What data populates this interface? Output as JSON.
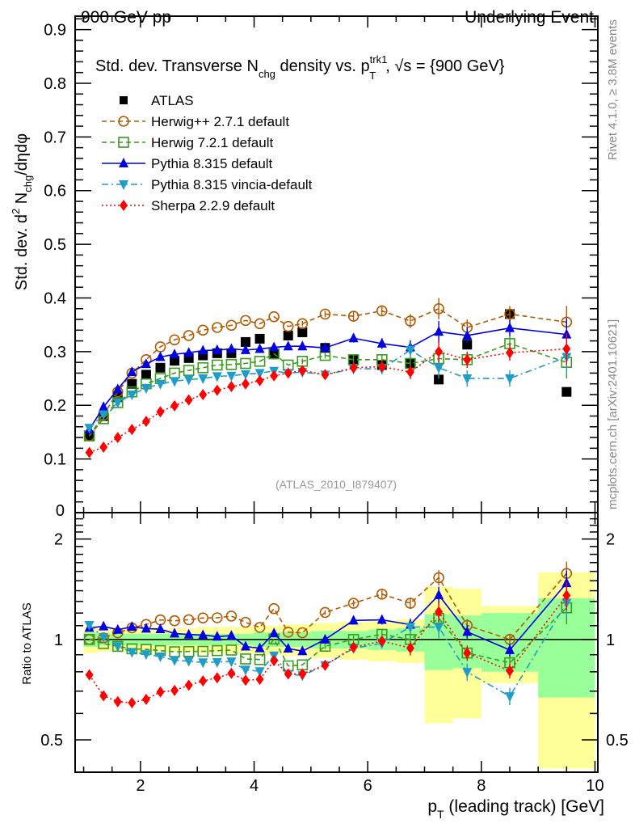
{
  "chart_data": {
    "type": "scatter",
    "header_left": "900 GeV pp",
    "header_right": "Underlying Event",
    "title": {
      "pre": "Std. dev. Transverse N",
      "sub1": "chg",
      "mid": " density vs. p",
      "sup2": "trk1",
      "sub2": "T",
      "post": ", √s = {900 GeV}"
    },
    "ylabel": {
      "pre": "Std. dev. d",
      "sup": "2",
      "mid": " N",
      "sub": "chg",
      "post": "/dηdφ"
    },
    "ratio_ylabel": "Ratio to ATLAS",
    "xlabel": {
      "pre": "p",
      "sub": "T",
      "post": " (leading track) [GeV]"
    },
    "analysis_label": "(ATLAS_2010_I879407)",
    "side_label_top": "Rivet 4.1.0, ≥ 3.8M events",
    "side_label_bottom": "mcplots.cern.ch [arXiv:2401.10621]",
    "xlim": [
      0.85,
      10.05
    ],
    "ylim": [
      0,
      0.925
    ],
    "ratio_ylim": [
      0.4,
      2.4
    ],
    "grid": false,
    "legend_position": "top-left",
    "x_ticks": [
      2,
      4,
      6,
      8,
      10
    ],
    "x_tick_labels": [
      "2",
      "4",
      "6",
      "8",
      "10"
    ],
    "y_ticks": [
      0,
      0.1,
      0.2,
      0.3,
      0.4,
      0.5,
      0.6,
      0.7,
      0.8,
      0.9
    ],
    "y_tick_labels": [
      "0",
      "0.1",
      "0.2",
      "0.3",
      "0.4",
      "0.5",
      "0.6",
      "0.7",
      "0.8",
      "0.9"
    ],
    "ratio_y_ticks": [
      0.5,
      1,
      2
    ],
    "ratio_y_tick_labels": [
      "0.5",
      "1",
      "2"
    ],
    "x": [
      1.1,
      1.35,
      1.6,
      1.85,
      2.1,
      2.35,
      2.6,
      2.85,
      3.1,
      3.35,
      3.6,
      3.85,
      4.1,
      4.35,
      4.6,
      4.85,
      5.25,
      5.75,
      6.25,
      6.75,
      7.25,
      7.75,
      8.5,
      9.5
    ],
    "x_edges": [
      1.0,
      1.25,
      1.5,
      1.75,
      2.0,
      2.25,
      2.5,
      2.75,
      3.0,
      3.25,
      3.5,
      3.75,
      4.0,
      4.25,
      4.5,
      4.75,
      5.0,
      5.5,
      6.0,
      6.5,
      7.0,
      7.5,
      8.0,
      9.0,
      10.0
    ],
    "reference": {
      "name": "ATLAS",
      "color": "#000000",
      "values": [
        0.143,
        0.18,
        0.215,
        0.24,
        0.257,
        0.27,
        0.283,
        0.288,
        0.293,
        0.297,
        0.297,
        0.318,
        0.324,
        0.295,
        0.33,
        0.336,
        0.307,
        0.285,
        0.275,
        0.278,
        0.248,
        0.313,
        0.37,
        0.225
      ],
      "band_stat_rel": [
        0.05,
        0.04,
        0.04,
        0.04,
        0.04,
        0.04,
        0.04,
        0.04,
        0.04,
        0.04,
        0.04,
        0.04,
        0.05,
        0.05,
        0.05,
        0.05,
        0.06,
        0.06,
        0.07,
        0.08,
        0.19,
        0.18,
        0.2,
        0.33
      ],
      "band_total_rel": [
        0.09,
        0.08,
        0.08,
        0.08,
        0.08,
        0.08,
        0.08,
        0.08,
        0.09,
        0.09,
        0.09,
        0.09,
        0.1,
        0.1,
        0.11,
        0.11,
        0.12,
        0.13,
        0.14,
        0.15,
        0.44,
        0.42,
        0.26,
        0.59
      ]
    },
    "series": [
      {
        "name": "Herwig++ 2.7.1 default",
        "color": "#b35900",
        "marker": "open-circle",
        "line": "dashed",
        "values": [
          0.143,
          0.182,
          0.225,
          0.26,
          0.285,
          0.309,
          0.322,
          0.33,
          0.34,
          0.345,
          0.349,
          0.358,
          0.352,
          0.365,
          0.347,
          0.352,
          0.37,
          0.366,
          0.376,
          0.357,
          0.38,
          0.345,
          0.37,
          0.355
        ],
        "errors": [
          0.002,
          0.002,
          0.002,
          0.002,
          0.002,
          0.003,
          0.003,
          0.003,
          0.003,
          0.003,
          0.003,
          0.004,
          0.004,
          0.004,
          0.004,
          0.005,
          0.006,
          0.008,
          0.01,
          0.013,
          0.02,
          0.015,
          0.015,
          0.03
        ]
      },
      {
        "name": "Herwig 7.2.1 default",
        "color": "#3a9b1c",
        "marker": "open-square",
        "line": "dashed",
        "values": [
          0.143,
          0.175,
          0.205,
          0.225,
          0.24,
          0.25,
          0.26,
          0.265,
          0.27,
          0.275,
          0.276,
          0.278,
          0.282,
          0.296,
          0.275,
          0.282,
          0.293,
          0.285,
          0.285,
          0.278,
          0.287,
          0.285,
          0.315,
          0.28
        ],
        "errors": [
          0.002,
          0.002,
          0.002,
          0.002,
          0.002,
          0.003,
          0.003,
          0.003,
          0.003,
          0.003,
          0.003,
          0.004,
          0.004,
          0.004,
          0.004,
          0.005,
          0.006,
          0.008,
          0.01,
          0.013,
          0.02,
          0.015,
          0.015,
          0.03
        ]
      },
      {
        "name": "Pythia 8.315 default",
        "color": "#0000e0",
        "marker": "filled-triangle-up",
        "line": "solid",
        "values": [
          0.155,
          0.197,
          0.23,
          0.262,
          0.277,
          0.29,
          0.295,
          0.298,
          0.302,
          0.303,
          0.305,
          0.303,
          0.305,
          0.308,
          0.31,
          0.31,
          0.307,
          0.325,
          0.315,
          0.308,
          0.337,
          0.33,
          0.344,
          0.332
        ],
        "errors": [
          0.002,
          0.002,
          0.002,
          0.002,
          0.002,
          0.003,
          0.003,
          0.003,
          0.003,
          0.003,
          0.003,
          0.004,
          0.004,
          0.004,
          0.004,
          0.005,
          0.006,
          0.008,
          0.01,
          0.013,
          0.02,
          0.015,
          0.015,
          0.03
        ]
      },
      {
        "name": "Pythia 8.315 vincia-default",
        "color": "#1f9cc8",
        "marker": "filled-triangle-down",
        "line": "dashdot",
        "values": [
          0.158,
          0.183,
          0.205,
          0.22,
          0.232,
          0.24,
          0.245,
          0.248,
          0.25,
          0.254,
          0.255,
          0.258,
          0.26,
          0.264,
          0.26,
          0.262,
          0.257,
          0.268,
          0.268,
          0.303,
          0.27,
          0.25,
          0.25,
          0.29
        ],
        "errors": [
          0.002,
          0.002,
          0.002,
          0.002,
          0.002,
          0.003,
          0.003,
          0.003,
          0.003,
          0.003,
          0.003,
          0.004,
          0.004,
          0.004,
          0.004,
          0.005,
          0.006,
          0.008,
          0.01,
          0.013,
          0.02,
          0.015,
          0.015,
          0.03
        ]
      },
      {
        "name": "Sherpa 2.2.9 default",
        "color": "#ff0000",
        "marker": "filled-diamond",
        "line": "dotted",
        "values": [
          0.112,
          0.122,
          0.14,
          0.155,
          0.17,
          0.188,
          0.199,
          0.21,
          0.22,
          0.228,
          0.235,
          0.24,
          0.246,
          0.255,
          0.26,
          0.265,
          0.257,
          0.27,
          0.272,
          0.262,
          0.3,
          0.285,
          0.298,
          0.305
        ],
        "errors": [
          0.002,
          0.002,
          0.002,
          0.002,
          0.002,
          0.003,
          0.003,
          0.003,
          0.003,
          0.003,
          0.003,
          0.004,
          0.004,
          0.004,
          0.004,
          0.005,
          0.006,
          0.008,
          0.01,
          0.013,
          0.02,
          0.015,
          0.015,
          0.03
        ]
      }
    ]
  }
}
